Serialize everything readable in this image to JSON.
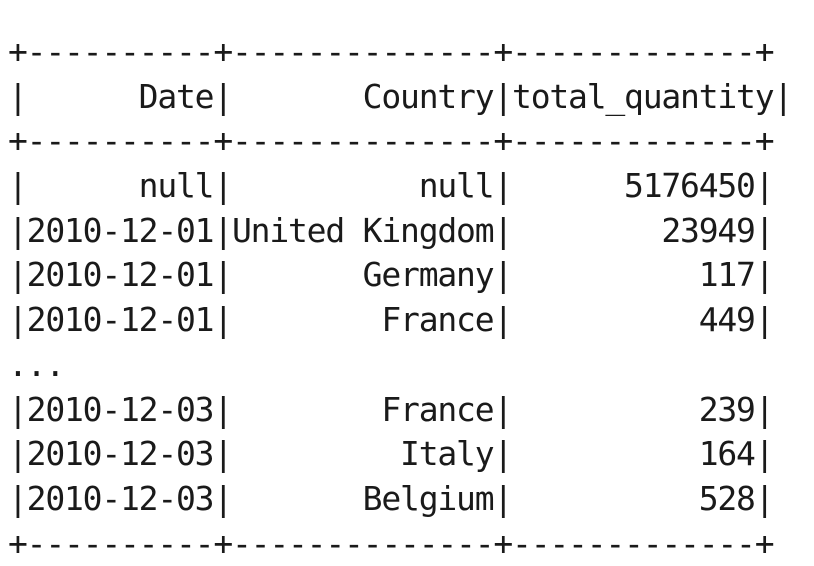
{
  "console": {
    "lines": [
      "+----------+--------------+-------------+",
      "|      Date|       Country|total_quantity|",
      "+----------+--------------+-------------+",
      "|      null|          null|      5176450|",
      "|2010-12-01|United Kingdom|        23949|",
      "|2010-12-01|       Germany|          117|",
      "|2010-12-01|        France|          449|",
      "...",
      "|2010-12-03|        France|          239|",
      "|2010-12-03|         Italy|          164|",
      "|2010-12-03|       Belgium|          528|",
      "+----------+--------------+-------------+"
    ]
  }
}
